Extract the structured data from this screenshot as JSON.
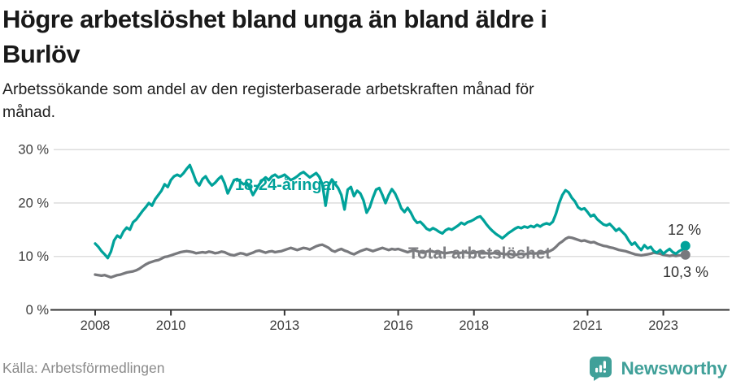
{
  "header": {
    "title_lines": [
      "Högre arbetslöshet bland unga än bland äldre i",
      "Burlöv"
    ],
    "subtitle_lines": [
      "Arbetssökande som andel av den registerbaserade arbetskraften månad för",
      "månad."
    ]
  },
  "footer": {
    "source": "Källa: Arbetsförmedlingen",
    "brand_name": "Newsworthy"
  },
  "colors": {
    "young_line": "#00a29a",
    "total_line": "#78797d",
    "total_label": "#7d7e82",
    "end_value_text": "#333333",
    "grid": "#d9d9d9",
    "axis": "#333333",
    "tick_text": "#3c3c3c",
    "brand": "#40a099"
  },
  "chart_data": {
    "type": "line",
    "title": "Högre arbetslöshet bland unga än bland äldre i Burlöv",
    "subtitle": "Arbetssökande som andel av den registerbaserade arbetskraften månad för månad.",
    "xlabel": "",
    "ylabel": "",
    "x_unit": "monthly, starting January 2008",
    "start_year": 2008,
    "points_per_year": 12,
    "x_tick_years": [
      2008,
      2010,
      2013,
      2016,
      2018,
      2021,
      2023
    ],
    "y_ticks": [
      0,
      10,
      20,
      30
    ],
    "y_tick_labels": [
      "0 %",
      "10 %",
      "20 %",
      "30 %"
    ],
    "ylim": [
      0,
      33
    ],
    "grid": "horizontal",
    "legend_position": "inline-labels",
    "series": [
      {
        "name": "18-24-åringar",
        "label": "18-24-åringar",
        "end_label": "12 %",
        "end_value": 12.0,
        "color_key": "young_line",
        "monthly_values": [
          12.4,
          11.8,
          11.0,
          10.4,
          9.7,
          10.9,
          13.0,
          13.9,
          13.5,
          14.7,
          15.4,
          15.0,
          16.4,
          16.9,
          17.7,
          18.5,
          19.2,
          20.0,
          19.5,
          20.7,
          21.5,
          22.3,
          23.5,
          23.0,
          24.3,
          25.0,
          25.3,
          25.0,
          25.6,
          26.4,
          27.1,
          25.6,
          24.0,
          23.3,
          24.5,
          25.0,
          24.0,
          23.3,
          23.8,
          24.5,
          25.0,
          23.7,
          21.8,
          23.0,
          24.3,
          24.5,
          24.0,
          23.5,
          23.8,
          22.8,
          21.5,
          22.5,
          23.5,
          24.3,
          24.8,
          24.3,
          25.0,
          25.3,
          24.8,
          25.0,
          25.3,
          24.8,
          24.3,
          24.6,
          25.0,
          25.5,
          25.8,
          25.3,
          24.8,
          25.2,
          25.6,
          24.9,
          23.5,
          19.5,
          23.3,
          24.4,
          23.6,
          22.8,
          21.5,
          18.8,
          22.5,
          23.0,
          21.3,
          22.3,
          21.8,
          20.5,
          18.2,
          19.2,
          21.0,
          22.5,
          22.8,
          21.5,
          20.0,
          21.5,
          22.6,
          21.8,
          20.5,
          19.0,
          18.3,
          19.1,
          18.2,
          17.0,
          16.3,
          16.5,
          15.9,
          15.2,
          14.9,
          15.3,
          15.0,
          14.6,
          14.3,
          14.9,
          15.2,
          15.0,
          15.4,
          15.8,
          16.3,
          16.0,
          16.4,
          16.6,
          16.9,
          17.3,
          17.5,
          16.8,
          16.0,
          15.3,
          14.7,
          14.2,
          13.8,
          13.4,
          13.9,
          14.4,
          14.8,
          15.2,
          15.5,
          15.3,
          15.6,
          15.4,
          15.7,
          15.5,
          15.9,
          15.6,
          16.0,
          16.2,
          16.0,
          16.5,
          18.0,
          20.0,
          21.5,
          22.4,
          22.0,
          21.0,
          20.3,
          19.2,
          18.8,
          19.0,
          18.3,
          17.5,
          17.8,
          17.0,
          16.5,
          16.0,
          15.8,
          16.1,
          15.5,
          14.8,
          15.2,
          14.6,
          14.0,
          13.0,
          12.2,
          12.6,
          11.8,
          11.2,
          12.1,
          11.5,
          11.8,
          11.0,
          10.7,
          11.2,
          10.5,
          11.0,
          11.4,
          10.8,
          10.5,
          11.0,
          11.3,
          12.0
        ]
      },
      {
        "name": "Total arbetslöshet",
        "label": "Total arbetslöshet",
        "end_label": "10,3 %",
        "end_value": 10.3,
        "color_key": "total_line",
        "monthly_values": [
          6.6,
          6.5,
          6.4,
          6.5,
          6.3,
          6.1,
          6.3,
          6.5,
          6.6,
          6.8,
          7.0,
          7.1,
          7.2,
          7.4,
          7.7,
          8.1,
          8.5,
          8.8,
          9.0,
          9.2,
          9.3,
          9.6,
          9.9,
          10.0,
          10.2,
          10.4,
          10.6,
          10.8,
          10.9,
          11.0,
          10.9,
          10.8,
          10.6,
          10.7,
          10.8,
          10.7,
          10.9,
          10.8,
          10.6,
          10.7,
          10.9,
          10.8,
          10.5,
          10.3,
          10.2,
          10.4,
          10.6,
          10.5,
          10.3,
          10.5,
          10.7,
          11.0,
          11.1,
          10.9,
          10.7,
          10.9,
          11.0,
          10.8,
          10.9,
          11.0,
          11.2,
          11.4,
          11.6,
          11.4,
          11.2,
          11.4,
          11.6,
          11.5,
          11.3,
          11.6,
          11.9,
          12.1,
          12.2,
          11.9,
          11.6,
          11.1,
          10.9,
          11.2,
          11.4,
          11.1,
          10.9,
          10.6,
          10.4,
          10.7,
          11.0,
          11.2,
          11.4,
          11.2,
          11.0,
          11.2,
          11.4,
          11.6,
          11.4,
          11.2,
          11.4,
          11.3,
          11.4,
          11.2,
          11.0,
          10.8,
          11.0,
          11.2,
          11.0,
          10.8,
          10.7,
          10.9,
          11.1,
          10.9,
          10.8,
          10.9,
          10.7,
          10.6,
          10.7,
          10.8,
          10.7,
          10.6,
          10.7,
          10.8,
          10.7,
          10.6,
          10.7,
          10.8,
          10.9,
          10.7,
          10.6,
          10.5,
          10.6,
          10.7,
          10.6,
          10.5,
          10.4,
          10.5,
          10.4,
          10.3,
          10.4,
          10.5,
          10.4,
          10.5,
          10.6,
          10.5,
          10.6,
          10.7,
          10.8,
          10.8,
          11.0,
          11.3,
          11.8,
          12.4,
          12.8,
          13.3,
          13.6,
          13.5,
          13.3,
          13.1,
          12.9,
          13.0,
          12.8,
          12.6,
          12.7,
          12.4,
          12.2,
          12.0,
          11.9,
          11.7,
          11.6,
          11.4,
          11.2,
          11.1,
          11.0,
          10.8,
          10.6,
          10.4,
          10.3,
          10.2,
          10.3,
          10.4,
          10.5,
          10.7,
          10.6,
          10.5,
          10.3,
          10.2,
          10.1,
          10.2,
          10.1,
          10.2,
          10.2,
          10.3
        ]
      }
    ]
  }
}
